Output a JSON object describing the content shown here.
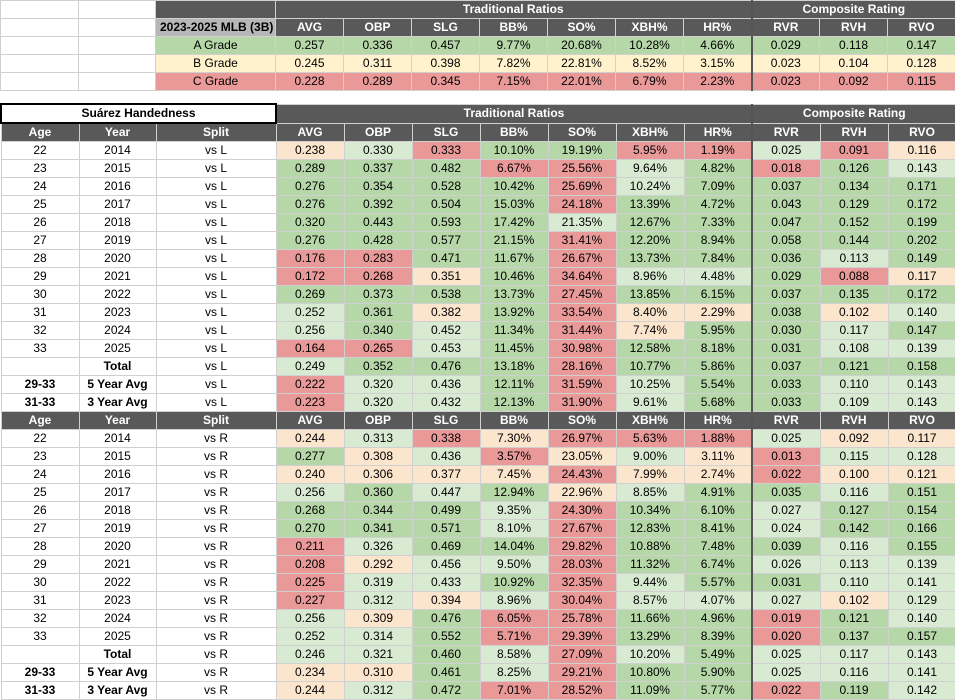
{
  "summary": {
    "title": "2023-2025 MLB (3B)",
    "section_traditional": "Traditional Ratios",
    "section_composite": "Composite Rating",
    "columns": [
      "AVG",
      "OBP",
      "SLG",
      "BB%",
      "SO%",
      "XBH%",
      "HR%",
      "RVR",
      "RVH",
      "RVO"
    ],
    "grades": [
      {
        "label": "A Grade",
        "values": [
          "0.257",
          "0.336",
          "0.457",
          "9.77%",
          "20.68%",
          "10.28%",
          "4.66%",
          "0.029",
          "0.118",
          "0.147"
        ]
      },
      {
        "label": "B Grade",
        "values": [
          "0.245",
          "0.311",
          "0.398",
          "7.82%",
          "22.81%",
          "8.52%",
          "3.15%",
          "0.023",
          "0.104",
          "0.128"
        ]
      },
      {
        "label": "C Grade",
        "values": [
          "0.228",
          "0.289",
          "0.345",
          "7.15%",
          "22.01%",
          "6.79%",
          "2.23%",
          "0.023",
          "0.092",
          "0.115"
        ]
      }
    ],
    "colors": {
      "A": "#b6d7a8",
      "B": "#fff2cc",
      "C": "#ea9999",
      "header": "#595959"
    }
  },
  "splits": {
    "player_title": "Suárez Handedness",
    "section_traditional": "Traditional Ratios",
    "section_composite": "Composite Rating",
    "column_headers": [
      "Age",
      "Year",
      "Split",
      "AVG",
      "OBP",
      "SLG",
      "BB%",
      "SO%",
      "XBH%",
      "HR%",
      "RVR",
      "RVH",
      "RVO"
    ],
    "vs_L": [
      {
        "age": "22",
        "year": "2014",
        "split": "vs L",
        "values": [
          "0.238",
          "0.330",
          "0.333",
          "10.10%",
          "19.19%",
          "5.95%",
          "1.19%",
          "0.025",
          "0.091",
          "0.116"
        ]
      },
      {
        "age": "23",
        "year": "2015",
        "split": "vs L",
        "values": [
          "0.289",
          "0.337",
          "0.482",
          "6.67%",
          "25.56%",
          "9.64%",
          "4.82%",
          "0.018",
          "0.126",
          "0.143"
        ]
      },
      {
        "age": "24",
        "year": "2016",
        "split": "vs L",
        "values": [
          "0.276",
          "0.354",
          "0.528",
          "10.42%",
          "25.69%",
          "10.24%",
          "7.09%",
          "0.037",
          "0.134",
          "0.171"
        ]
      },
      {
        "age": "25",
        "year": "2017",
        "split": "vs L",
        "values": [
          "0.276",
          "0.392",
          "0.504",
          "15.03%",
          "24.18%",
          "13.39%",
          "4.72%",
          "0.043",
          "0.129",
          "0.172"
        ]
      },
      {
        "age": "26",
        "year": "2018",
        "split": "vs L",
        "values": [
          "0.320",
          "0.443",
          "0.593",
          "17.42%",
          "21.35%",
          "12.67%",
          "7.33%",
          "0.047",
          "0.152",
          "0.199"
        ]
      },
      {
        "age": "27",
        "year": "2019",
        "split": "vs L",
        "values": [
          "0.276",
          "0.428",
          "0.577",
          "21.15%",
          "31.41%",
          "12.20%",
          "8.94%",
          "0.058",
          "0.144",
          "0.202"
        ]
      },
      {
        "age": "28",
        "year": "2020",
        "split": "vs L",
        "values": [
          "0.176",
          "0.283",
          "0.471",
          "11.67%",
          "26.67%",
          "13.73%",
          "7.84%",
          "0.036",
          "0.113",
          "0.149"
        ]
      },
      {
        "age": "29",
        "year": "2021",
        "split": "vs L",
        "values": [
          "0.172",
          "0.268",
          "0.351",
          "10.46%",
          "34.64%",
          "8.96%",
          "4.48%",
          "0.029",
          "0.088",
          "0.117"
        ]
      },
      {
        "age": "30",
        "year": "2022",
        "split": "vs L",
        "values": [
          "0.269",
          "0.373",
          "0.538",
          "13.73%",
          "27.45%",
          "13.85%",
          "6.15%",
          "0.037",
          "0.135",
          "0.172"
        ]
      },
      {
        "age": "31",
        "year": "2023",
        "split": "vs L",
        "values": [
          "0.252",
          "0.361",
          "0.382",
          "13.92%",
          "33.54%",
          "8.40%",
          "2.29%",
          "0.038",
          "0.102",
          "0.140"
        ]
      },
      {
        "age": "32",
        "year": "2024",
        "split": "vs L",
        "values": [
          "0.256",
          "0.340",
          "0.452",
          "11.34%",
          "31.44%",
          "7.74%",
          "5.95%",
          "0.030",
          "0.117",
          "0.147"
        ]
      },
      {
        "age": "33",
        "year": "2025",
        "split": "vs L",
        "values": [
          "0.164",
          "0.265",
          "0.453",
          "11.45%",
          "30.98%",
          "12.58%",
          "8.18%",
          "0.031",
          "0.108",
          "0.139"
        ]
      },
      {
        "age": "",
        "year": "Total",
        "split": "vs L",
        "values": [
          "0.249",
          "0.352",
          "0.476",
          "13.18%",
          "28.16%",
          "10.77%",
          "5.86%",
          "0.037",
          "0.121",
          "0.158"
        ]
      },
      {
        "age": "29-33",
        "year": "5 Year Avg",
        "split": "vs L",
        "values": [
          "0.222",
          "0.320",
          "0.436",
          "12.11%",
          "31.59%",
          "10.25%",
          "5.54%",
          "0.033",
          "0.110",
          "0.143"
        ]
      },
      {
        "age": "31-33",
        "year": "3 Year Avg",
        "split": "vs L",
        "values": [
          "0.223",
          "0.320",
          "0.432",
          "12.13%",
          "31.90%",
          "9.61%",
          "5.68%",
          "0.033",
          "0.109",
          "0.143"
        ]
      }
    ],
    "vs_R": [
      {
        "age": "22",
        "year": "2014",
        "split": "vs R",
        "values": [
          "0.244",
          "0.313",
          "0.338",
          "7.30%",
          "26.97%",
          "5.63%",
          "1.88%",
          "0.025",
          "0.092",
          "0.117"
        ]
      },
      {
        "age": "23",
        "year": "2015",
        "split": "vs R",
        "values": [
          "0.277",
          "0.308",
          "0.436",
          "3.57%",
          "23.05%",
          "9.00%",
          "3.11%",
          "0.013",
          "0.115",
          "0.128"
        ]
      },
      {
        "age": "24",
        "year": "2016",
        "split": "vs R",
        "values": [
          "0.240",
          "0.306",
          "0.377",
          "7.45%",
          "24.43%",
          "7.99%",
          "2.74%",
          "0.022",
          "0.100",
          "0.121"
        ]
      },
      {
        "age": "25",
        "year": "2017",
        "split": "vs R",
        "values": [
          "0.256",
          "0.360",
          "0.447",
          "12.94%",
          "22.96%",
          "8.85%",
          "4.91%",
          "0.035",
          "0.116",
          "0.151"
        ]
      },
      {
        "age": "26",
        "year": "2018",
        "split": "vs R",
        "values": [
          "0.268",
          "0.344",
          "0.499",
          "9.35%",
          "24.30%",
          "10.34%",
          "6.10%",
          "0.027",
          "0.127",
          "0.154"
        ]
      },
      {
        "age": "27",
        "year": "2019",
        "split": "vs R",
        "values": [
          "0.270",
          "0.341",
          "0.571",
          "8.10%",
          "27.67%",
          "12.83%",
          "8.41%",
          "0.024",
          "0.142",
          "0.166"
        ]
      },
      {
        "age": "28",
        "year": "2020",
        "split": "vs R",
        "values": [
          "0.211",
          "0.326",
          "0.469",
          "14.04%",
          "29.82%",
          "10.88%",
          "7.48%",
          "0.039",
          "0.116",
          "0.155"
        ]
      },
      {
        "age": "29",
        "year": "2021",
        "split": "vs R",
        "values": [
          "0.208",
          "0.292",
          "0.456",
          "9.50%",
          "28.03%",
          "11.32%",
          "6.74%",
          "0.026",
          "0.113",
          "0.139"
        ]
      },
      {
        "age": "30",
        "year": "2022",
        "split": "vs R",
        "values": [
          "0.225",
          "0.319",
          "0.433",
          "10.92%",
          "32.35%",
          "9.44%",
          "5.57%",
          "0.031",
          "0.110",
          "0.141"
        ]
      },
      {
        "age": "31",
        "year": "2023",
        "split": "vs R",
        "values": [
          "0.227",
          "0.312",
          "0.394",
          "8.96%",
          "30.04%",
          "8.57%",
          "4.07%",
          "0.027",
          "0.102",
          "0.129"
        ]
      },
      {
        "age": "32",
        "year": "2024",
        "split": "vs R",
        "values": [
          "0.256",
          "0.309",
          "0.476",
          "6.05%",
          "25.78%",
          "11.66%",
          "4.96%",
          "0.019",
          "0.121",
          "0.140"
        ]
      },
      {
        "age": "33",
        "year": "2025",
        "split": "vs R",
        "values": [
          "0.252",
          "0.314",
          "0.552",
          "5.71%",
          "29.39%",
          "13.29%",
          "8.39%",
          "0.020",
          "0.137",
          "0.157"
        ]
      },
      {
        "age": "",
        "year": "Total",
        "split": "vs R",
        "values": [
          "0.246",
          "0.321",
          "0.460",
          "8.58%",
          "27.09%",
          "10.20%",
          "5.49%",
          "0.025",
          "0.117",
          "0.143"
        ]
      },
      {
        "age": "29-33",
        "year": "5 Year Avg",
        "split": "vs R",
        "values": [
          "0.234",
          "0.310",
          "0.461",
          "8.25%",
          "29.21%",
          "10.80%",
          "5.90%",
          "0.025",
          "0.116",
          "0.141"
        ]
      },
      {
        "age": "31-33",
        "year": "3 Year Avg",
        "split": "vs R",
        "values": [
          "0.244",
          "0.312",
          "0.472",
          "7.01%",
          "28.52%",
          "11.09%",
          "5.77%",
          "0.022",
          "0.119",
          "0.142"
        ]
      }
    ]
  }
}
